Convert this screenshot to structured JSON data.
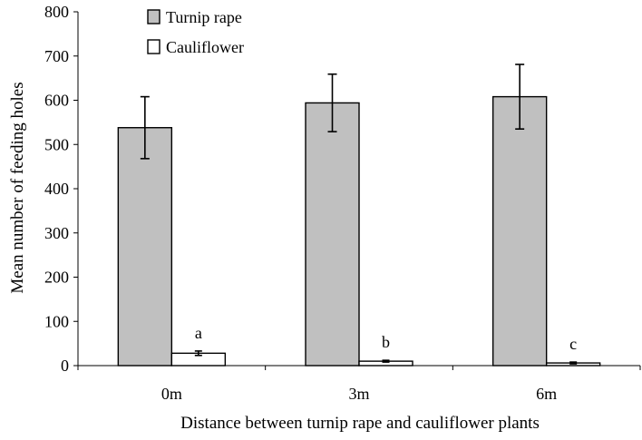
{
  "chart_data": {
    "type": "bar",
    "title": "",
    "xlabel": "Distance between turnip rape and cauliflower plants",
    "ylabel": "Mean number of feeding holes",
    "ylim": [
      0,
      800
    ],
    "yticks": [
      "0",
      "100",
      "200",
      "300",
      "400",
      "500",
      "600",
      "700",
      "800"
    ],
    "grid": false,
    "legend_position": "top-left",
    "categories": [
      "0m",
      "3m",
      "6m"
    ],
    "series": [
      {
        "name": "Turnip rape",
        "color": "#c0c0c0",
        "values": [
          538,
          594,
          608
        ],
        "errors": [
          70,
          65,
          73
        ]
      },
      {
        "name": "Cauliflower",
        "color": "#ffffff",
        "values": [
          28,
          10,
          6
        ],
        "errors": [
          5,
          2,
          2
        ]
      }
    ],
    "annotations": [
      "a",
      "b",
      "c"
    ]
  }
}
